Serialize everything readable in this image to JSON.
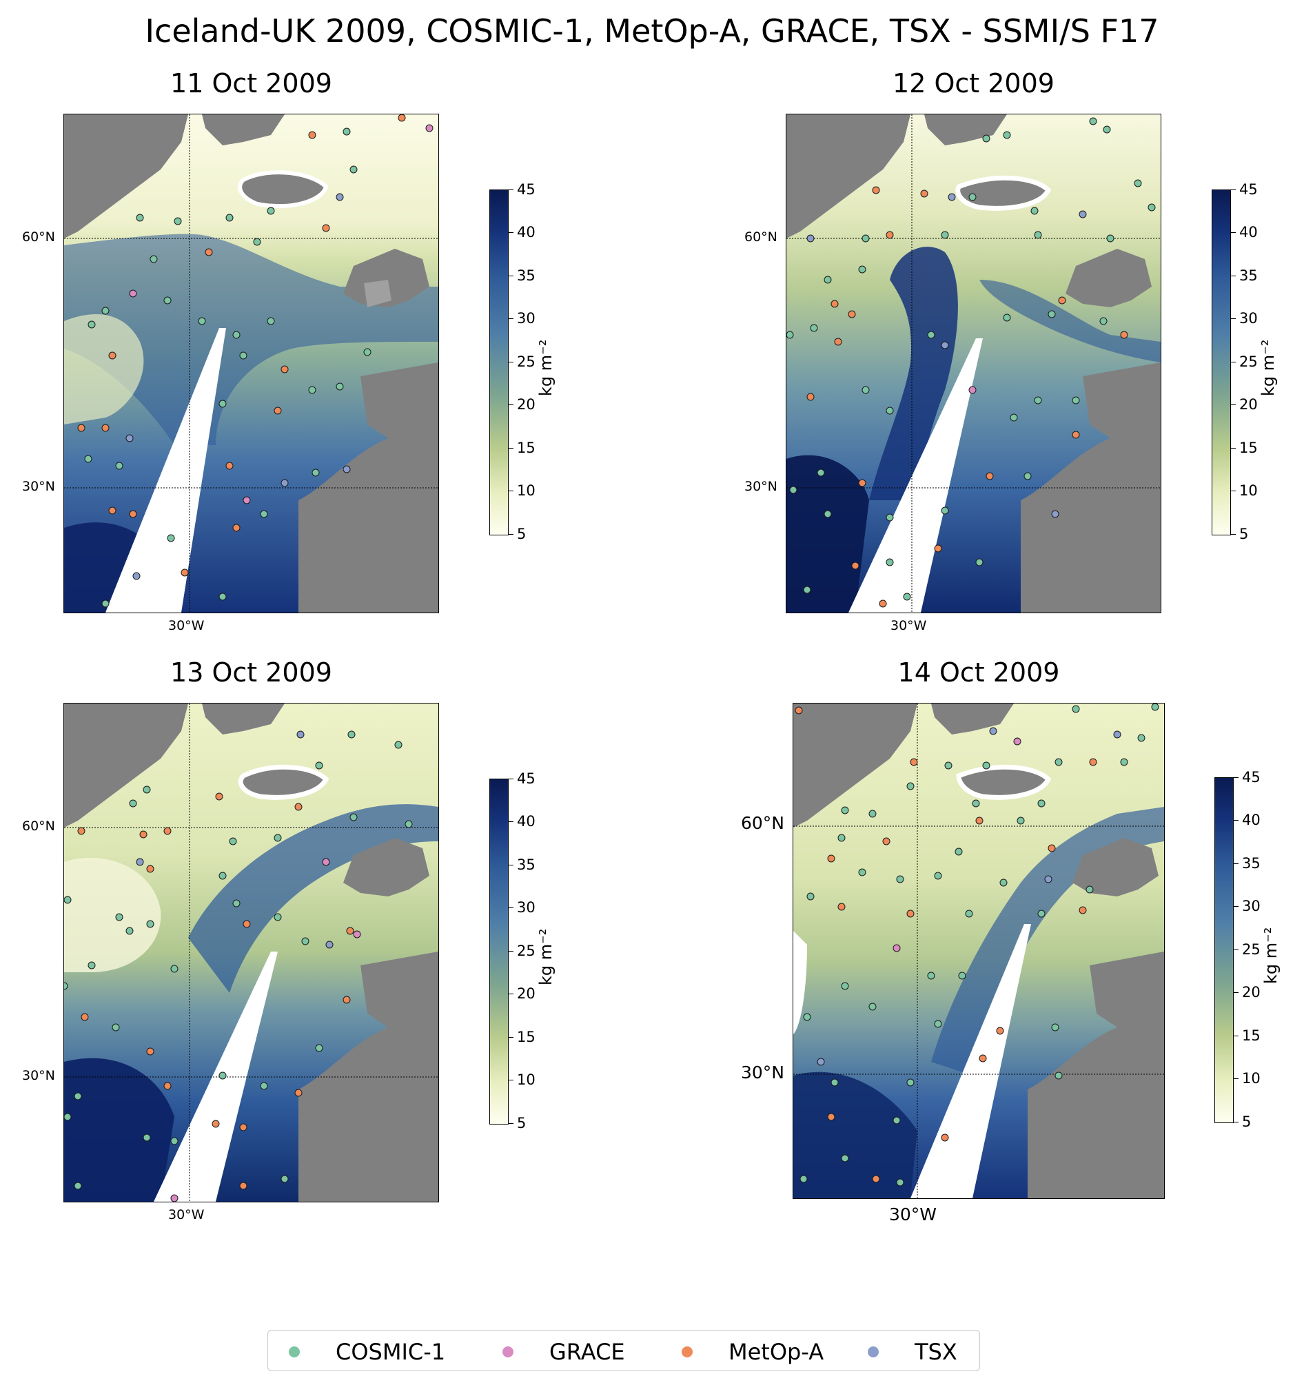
{
  "figure": {
    "title": "Iceland-UK 2009, COSMIC-1, MetOp-A, GRACE, TSX - SSMI/S F17"
  },
  "panels": [
    {
      "title": "11 Oct 2009",
      "lat_labels": [
        "60°N",
        "30°N"
      ],
      "lon_label": "30°W"
    },
    {
      "title": "12 Oct 2009",
      "lat_labels": [
        "60°N",
        "30°N"
      ],
      "lon_label": "30°W"
    },
    {
      "title": "13 Oct 2009",
      "lat_labels": [
        "60°N",
        "30°N"
      ],
      "lon_label": "30°W"
    },
    {
      "title": "14 Oct 2009",
      "lat_labels": [
        "60°N",
        "30°N"
      ],
      "lon_label": "30°W"
    }
  ],
  "colorbar": {
    "unit": "kg m⁻²",
    "ticks": [
      "45",
      "40",
      "35",
      "30",
      "25",
      "20",
      "15",
      "10",
      "5"
    ],
    "min": 5,
    "max": 45,
    "colormap": "YlGnBu-like (white-yellow-green-blue-navy)"
  },
  "legend": {
    "items": [
      {
        "label": "COSMIC-1",
        "color": "#7cc4a2"
      },
      {
        "label": "GRACE",
        "color": "#d98bc2"
      },
      {
        "label": "MetOp-A",
        "color": "#ef8a58"
      },
      {
        "label": "TSX",
        "color": "#8b9ecb"
      }
    ]
  },
  "colors": {
    "land": "#808080",
    "missing": "#ffffff",
    "gridline": "#000000"
  }
}
